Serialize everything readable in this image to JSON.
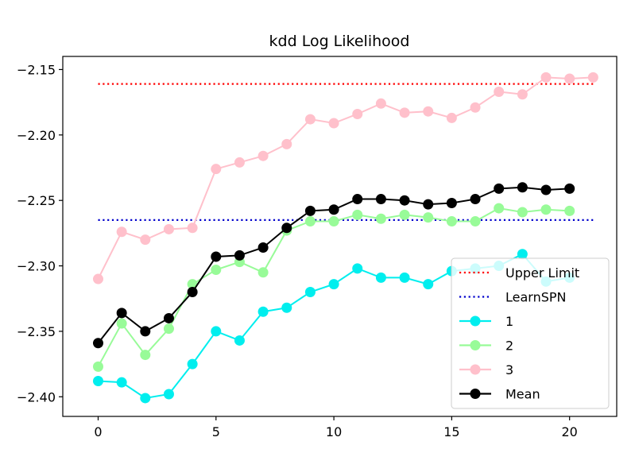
{
  "chart_data": {
    "type": "line",
    "title": "kdd Log Likelihood",
    "xlabel": "",
    "ylabel": "",
    "xlim": [
      -1.5,
      22.0
    ],
    "ylim": [
      -2.415,
      -2.14
    ],
    "xticks": [
      0,
      5,
      10,
      15,
      20
    ],
    "xtick_labels": [
      "0",
      "5",
      "10",
      "15",
      "20"
    ],
    "yticks": [
      -2.4,
      -2.35,
      -2.3,
      -2.25,
      -2.2,
      -2.15
    ],
    "ytick_labels": [
      "−2.40",
      "−2.35",
      "−2.30",
      "−2.25",
      "−2.20",
      "−2.15"
    ],
    "grid": false,
    "legend_position": "lower-right",
    "series": [
      {
        "name": "Upper Limit",
        "style": "dotted",
        "color": "#ff0000",
        "markers": false,
        "x": [
          0,
          21
        ],
        "y": [
          -2.161,
          -2.161
        ]
      },
      {
        "name": "LearnSPN",
        "style": "dotted",
        "color": "#0000cc",
        "markers": false,
        "x": [
          0,
          21
        ],
        "y": [
          -2.265,
          -2.265
        ]
      },
      {
        "name": "1",
        "style": "solid",
        "color": "#00eeee",
        "markers": true,
        "x": [
          0,
          1,
          2,
          3,
          4,
          5,
          6,
          7,
          8,
          9,
          10,
          11,
          12,
          13,
          14,
          15,
          16,
          17,
          18,
          19,
          20
        ],
        "y": [
          -2.388,
          -2.389,
          -2.401,
          -2.398,
          -2.375,
          -2.35,
          -2.357,
          -2.335,
          -2.332,
          -2.32,
          -2.314,
          -2.302,
          -2.309,
          -2.309,
          -2.314,
          -2.304,
          -2.302,
          -2.3,
          -2.291,
          -2.312,
          -2.309
        ]
      },
      {
        "name": "2",
        "style": "solid",
        "color": "#98fb98",
        "markers": true,
        "x": [
          0,
          1,
          2,
          3,
          4,
          5,
          6,
          7,
          8,
          9,
          10,
          11,
          12,
          13,
          14,
          15,
          16,
          17,
          18,
          19,
          20
        ],
        "y": [
          -2.377,
          -2.344,
          -2.368,
          -2.348,
          -2.314,
          -2.303,
          -2.297,
          -2.305,
          -2.273,
          -2.266,
          -2.266,
          -2.261,
          -2.264,
          -2.261,
          -2.263,
          -2.266,
          -2.266,
          -2.256,
          -2.259,
          -2.257,
          -2.258
        ]
      },
      {
        "name": "3",
        "style": "solid",
        "color": "#ffc0cb",
        "markers": true,
        "x": [
          0,
          1,
          2,
          3,
          4,
          5,
          6,
          7,
          8,
          9,
          10,
          11,
          12,
          13,
          14,
          15,
          16,
          17,
          18,
          19,
          20,
          21
        ],
        "y": [
          -2.31,
          -2.274,
          -2.28,
          -2.272,
          -2.271,
          -2.226,
          -2.221,
          -2.216,
          -2.207,
          -2.188,
          -2.191,
          -2.184,
          -2.176,
          -2.183,
          -2.182,
          -2.187,
          -2.179,
          -2.167,
          -2.169,
          -2.156,
          -2.157,
          -2.156
        ]
      },
      {
        "name": "Mean",
        "style": "solid",
        "color": "#000000",
        "markers": true,
        "x": [
          0,
          1,
          2,
          3,
          4,
          5,
          6,
          7,
          8,
          9,
          10,
          11,
          12,
          13,
          14,
          15,
          16,
          17,
          18,
          19,
          20
        ],
        "y": [
          -2.359,
          -2.336,
          -2.35,
          -2.34,
          -2.32,
          -2.293,
          -2.292,
          -2.286,
          -2.271,
          -2.258,
          -2.257,
          -2.249,
          -2.249,
          -2.25,
          -2.253,
          -2.252,
          -2.249,
          -2.241,
          -2.24,
          -2.242,
          -2.241
        ]
      }
    ]
  }
}
